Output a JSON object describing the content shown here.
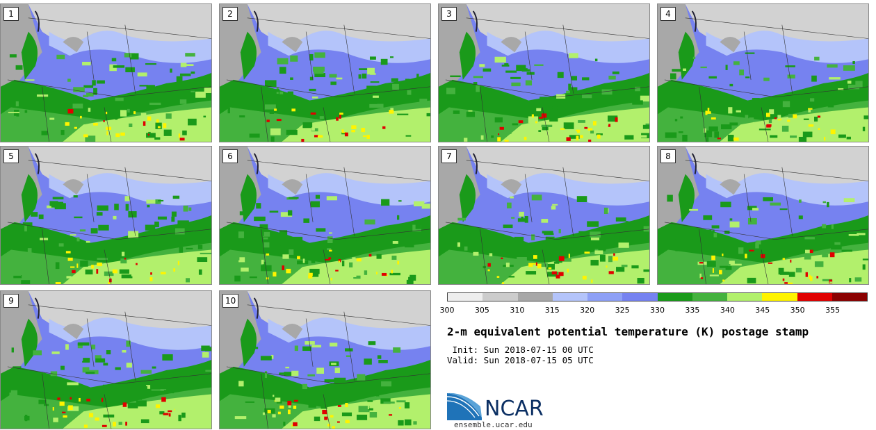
{
  "panels": [
    {
      "label": "1"
    },
    {
      "label": "2"
    },
    {
      "label": "3"
    },
    {
      "label": "4"
    },
    {
      "label": "5"
    },
    {
      "label": "6"
    },
    {
      "label": "7"
    },
    {
      "label": "8"
    },
    {
      "label": "9"
    },
    {
      "label": "10"
    }
  ],
  "colorbar": {
    "colors": [
      "#eeeeee",
      "#cccccc",
      "#a8a8a8",
      "#b4c4fa",
      "#8ea0f6",
      "#7682f0",
      "#1a9a1a",
      "#44b23e",
      "#b2f06c",
      "#fff400",
      "#e00000",
      "#8a0000"
    ],
    "ticks": [
      "300",
      "305",
      "310",
      "315",
      "320",
      "325",
      "330",
      "335",
      "340",
      "345",
      "350",
      "355"
    ]
  },
  "legend": {
    "title": "2-m equivalent potential temperature (K) postage stamp",
    "init": " Init: Sun 2018-07-15 00 UTC",
    "valid": "Valid: Sun 2018-07-15 05 UTC"
  },
  "branding": {
    "logo_text": "NCAR",
    "site": "ensemble.ucar.edu"
  }
}
